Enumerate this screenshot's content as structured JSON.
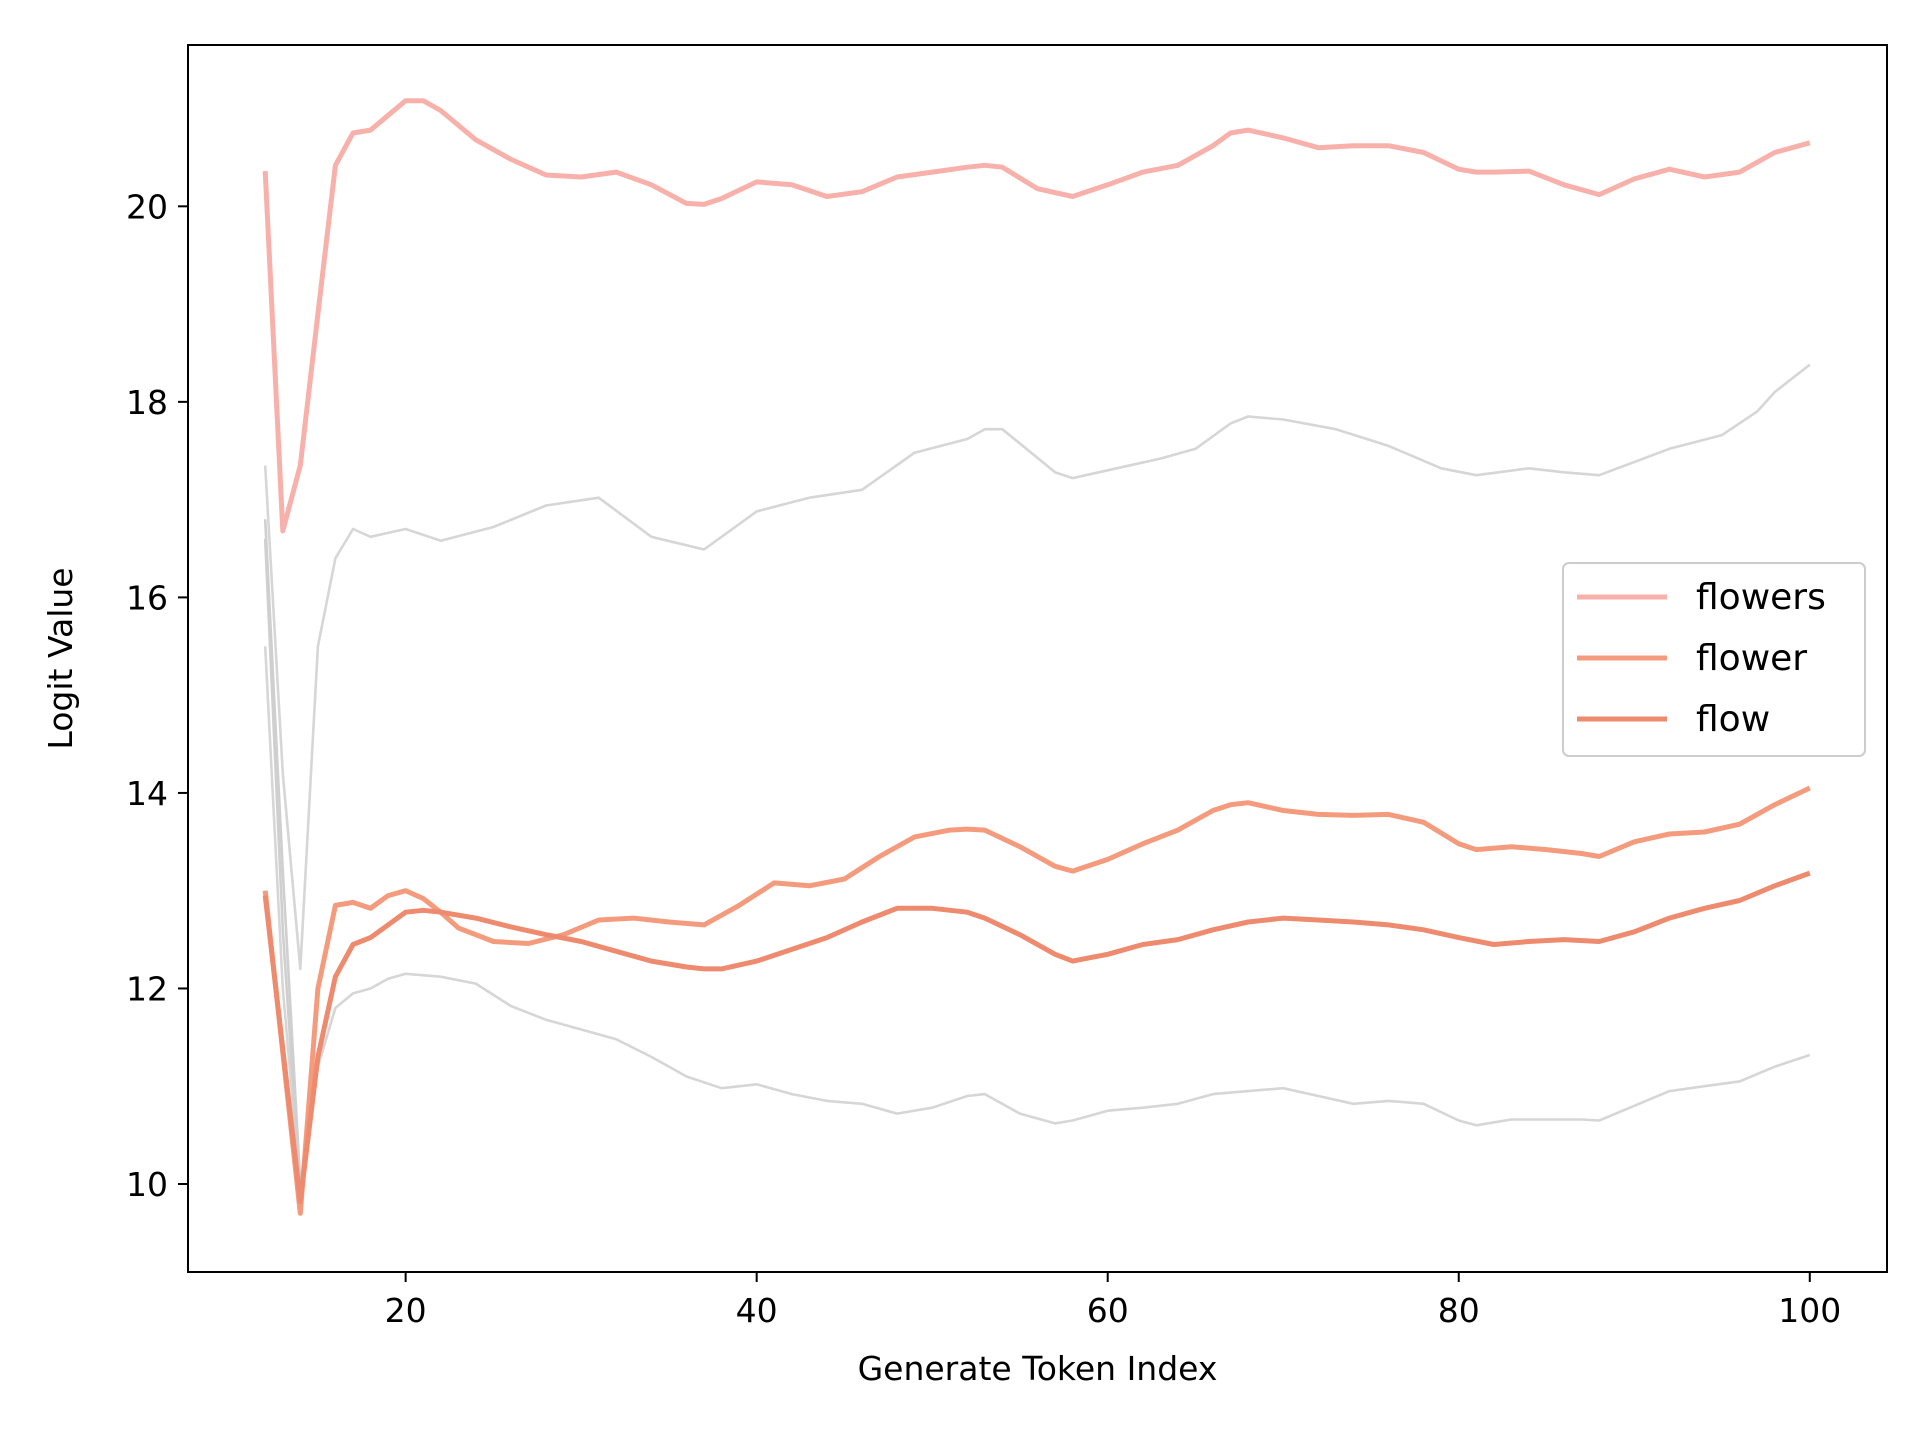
{
  "chart_data": {
    "type": "line",
    "title": "",
    "xlabel": "Generate Token Index",
    "ylabel": "Logit Value",
    "xlim": [
      7.6,
      104.4
    ],
    "ylim": [
      9.1,
      21.65
    ],
    "xticks": [
      20,
      40,
      60,
      80,
      100
    ],
    "yticks": [
      10,
      12,
      14,
      16,
      18,
      20
    ],
    "grid": false,
    "legend_position": "center-right",
    "background_series": [
      {
        "color": "#d6d6d6",
        "x": [
          12,
          13,
          14,
          15,
          16,
          17,
          18,
          19,
          20,
          22,
          25,
          28,
          31,
          34,
          37,
          40,
          43,
          46,
          49,
          52,
          53,
          54,
          57,
          58,
          60,
          63,
          65,
          67,
          68,
          70,
          73,
          76,
          79,
          81,
          84,
          86,
          88,
          92,
          95,
          97,
          98,
          100
        ],
        "y": [
          17.35,
          14.2,
          12.2,
          15.5,
          16.4,
          16.7,
          16.62,
          16.66,
          16.7,
          16.58,
          16.72,
          16.94,
          17.02,
          16.62,
          16.49,
          16.88,
          17.02,
          17.1,
          17.48,
          17.62,
          17.72,
          17.72,
          17.28,
          17.22,
          17.3,
          17.42,
          17.52,
          17.78,
          17.85,
          17.82,
          17.72,
          17.55,
          17.32,
          17.25,
          17.32,
          17.28,
          17.25,
          17.52,
          17.66,
          17.9,
          18.1,
          18.38
        ]
      },
      {
        "color": "#d6d6d6",
        "x": [
          12,
          13,
          14,
          15,
          16,
          17,
          18,
          19,
          20,
          22,
          24,
          26,
          28,
          30,
          32,
          34,
          36,
          38,
          40,
          42,
          44,
          46,
          48,
          50,
          52,
          53,
          55,
          57,
          58,
          60,
          62,
          64,
          66,
          68,
          70,
          72,
          74,
          76,
          78,
          80,
          81,
          83,
          85,
          87,
          88,
          90,
          92,
          94,
          96,
          98,
          100
        ],
        "y": [
          15.5,
          12.0,
          9.95,
          11.2,
          11.8,
          11.95,
          12.0,
          12.1,
          12.15,
          12.12,
          12.05,
          11.82,
          11.68,
          11.58,
          11.48,
          11.3,
          11.1,
          10.98,
          11.02,
          10.92,
          10.85,
          10.82,
          10.72,
          10.78,
          10.9,
          10.92,
          10.72,
          10.62,
          10.65,
          10.75,
          10.78,
          10.82,
          10.92,
          10.95,
          10.98,
          10.9,
          10.82,
          10.85,
          10.82,
          10.65,
          10.6,
          10.66,
          10.66,
          10.66,
          10.65,
          10.8,
          10.95,
          11.0,
          11.05,
          11.2,
          11.32
        ]
      },
      {
        "color": "#cfcfcf",
        "x": [
          12,
          13,
          14
        ],
        "y": [
          16.8,
          13.2,
          10.0
        ]
      },
      {
        "color": "#cfcfcf",
        "x": [
          12,
          13,
          14
        ],
        "y": [
          16.6,
          12.6,
          9.9
        ]
      }
    ],
    "series": [
      {
        "name": "flowers",
        "color": "#f8b0aa",
        "x": [
          12,
          13,
          14,
          15,
          16,
          17,
          18,
          20,
          21,
          22,
          24,
          26,
          28,
          30,
          32,
          34,
          36,
          37,
          38,
          40,
          42,
          44,
          46,
          48,
          50,
          52,
          53,
          54,
          56,
          58,
          60,
          62,
          64,
          66,
          67,
          68,
          70,
          72,
          74,
          76,
          78,
          80,
          81,
          82,
          84,
          86,
          88,
          90,
          92,
          94,
          96,
          98,
          100
        ],
        "y": [
          20.36,
          16.68,
          17.35,
          18.9,
          20.42,
          20.75,
          20.78,
          21.08,
          21.08,
          20.98,
          20.68,
          20.48,
          20.32,
          20.3,
          20.35,
          20.22,
          20.03,
          20.02,
          20.08,
          20.25,
          20.22,
          20.1,
          20.15,
          20.3,
          20.35,
          20.4,
          20.42,
          20.4,
          20.18,
          20.1,
          20.22,
          20.35,
          20.42,
          20.62,
          20.75,
          20.78,
          20.7,
          20.6,
          20.62,
          20.62,
          20.55,
          20.38,
          20.35,
          20.35,
          20.36,
          20.22,
          20.12,
          20.28,
          20.38,
          20.3,
          20.35,
          20.55,
          20.65
        ]
      },
      {
        "name": "flower",
        "color": "#f59b7d",
        "x": [
          12,
          14,
          15,
          16,
          17,
          18,
          19,
          20,
          21,
          22,
          23,
          25,
          27,
          29,
          31,
          33,
          35,
          37,
          39,
          41,
          43,
          45,
          47,
          49,
          51,
          52,
          53,
          55,
          57,
          58,
          60,
          62,
          64,
          66,
          67,
          68,
          70,
          72,
          74,
          76,
          78,
          80,
          81,
          83,
          85,
          87,
          88,
          90,
          92,
          94,
          96,
          98,
          100
        ],
        "y": [
          13.0,
          9.7,
          12.0,
          12.85,
          12.88,
          12.82,
          12.95,
          13.0,
          12.92,
          12.78,
          12.62,
          12.48,
          12.46,
          12.55,
          12.7,
          12.72,
          12.68,
          12.65,
          12.85,
          13.08,
          13.05,
          13.12,
          13.35,
          13.55,
          13.62,
          13.63,
          13.62,
          13.45,
          13.25,
          13.2,
          13.32,
          13.48,
          13.62,
          13.82,
          13.88,
          13.9,
          13.82,
          13.78,
          13.77,
          13.78,
          13.7,
          13.48,
          13.42,
          13.45,
          13.42,
          13.38,
          13.35,
          13.5,
          13.58,
          13.6,
          13.68,
          13.88,
          14.05
        ]
      },
      {
        "name": "flow",
        "color": "#ee8a6d",
        "x": [
          12,
          14,
          15,
          16,
          17,
          18,
          19,
          20,
          21,
          22,
          24,
          26,
          28,
          30,
          32,
          34,
          36,
          37,
          38,
          40,
          42,
          44,
          46,
          48,
          50,
          52,
          53,
          55,
          57,
          58,
          60,
          62,
          64,
          66,
          68,
          70,
          72,
          74,
          76,
          78,
          80,
          82,
          84,
          86,
          88,
          90,
          92,
          94,
          96,
          98,
          100
        ],
        "y": [
          12.95,
          9.82,
          11.3,
          12.12,
          12.45,
          12.52,
          12.65,
          12.78,
          12.8,
          12.78,
          12.72,
          12.63,
          12.55,
          12.48,
          12.38,
          12.28,
          12.22,
          12.2,
          12.2,
          12.28,
          12.4,
          12.52,
          12.68,
          12.82,
          12.82,
          12.78,
          12.72,
          12.55,
          12.35,
          12.28,
          12.35,
          12.45,
          12.5,
          12.6,
          12.68,
          12.72,
          12.7,
          12.68,
          12.65,
          12.6,
          12.52,
          12.45,
          12.48,
          12.5,
          12.48,
          12.58,
          12.72,
          12.82,
          12.9,
          13.05,
          13.18
        ]
      }
    ]
  }
}
